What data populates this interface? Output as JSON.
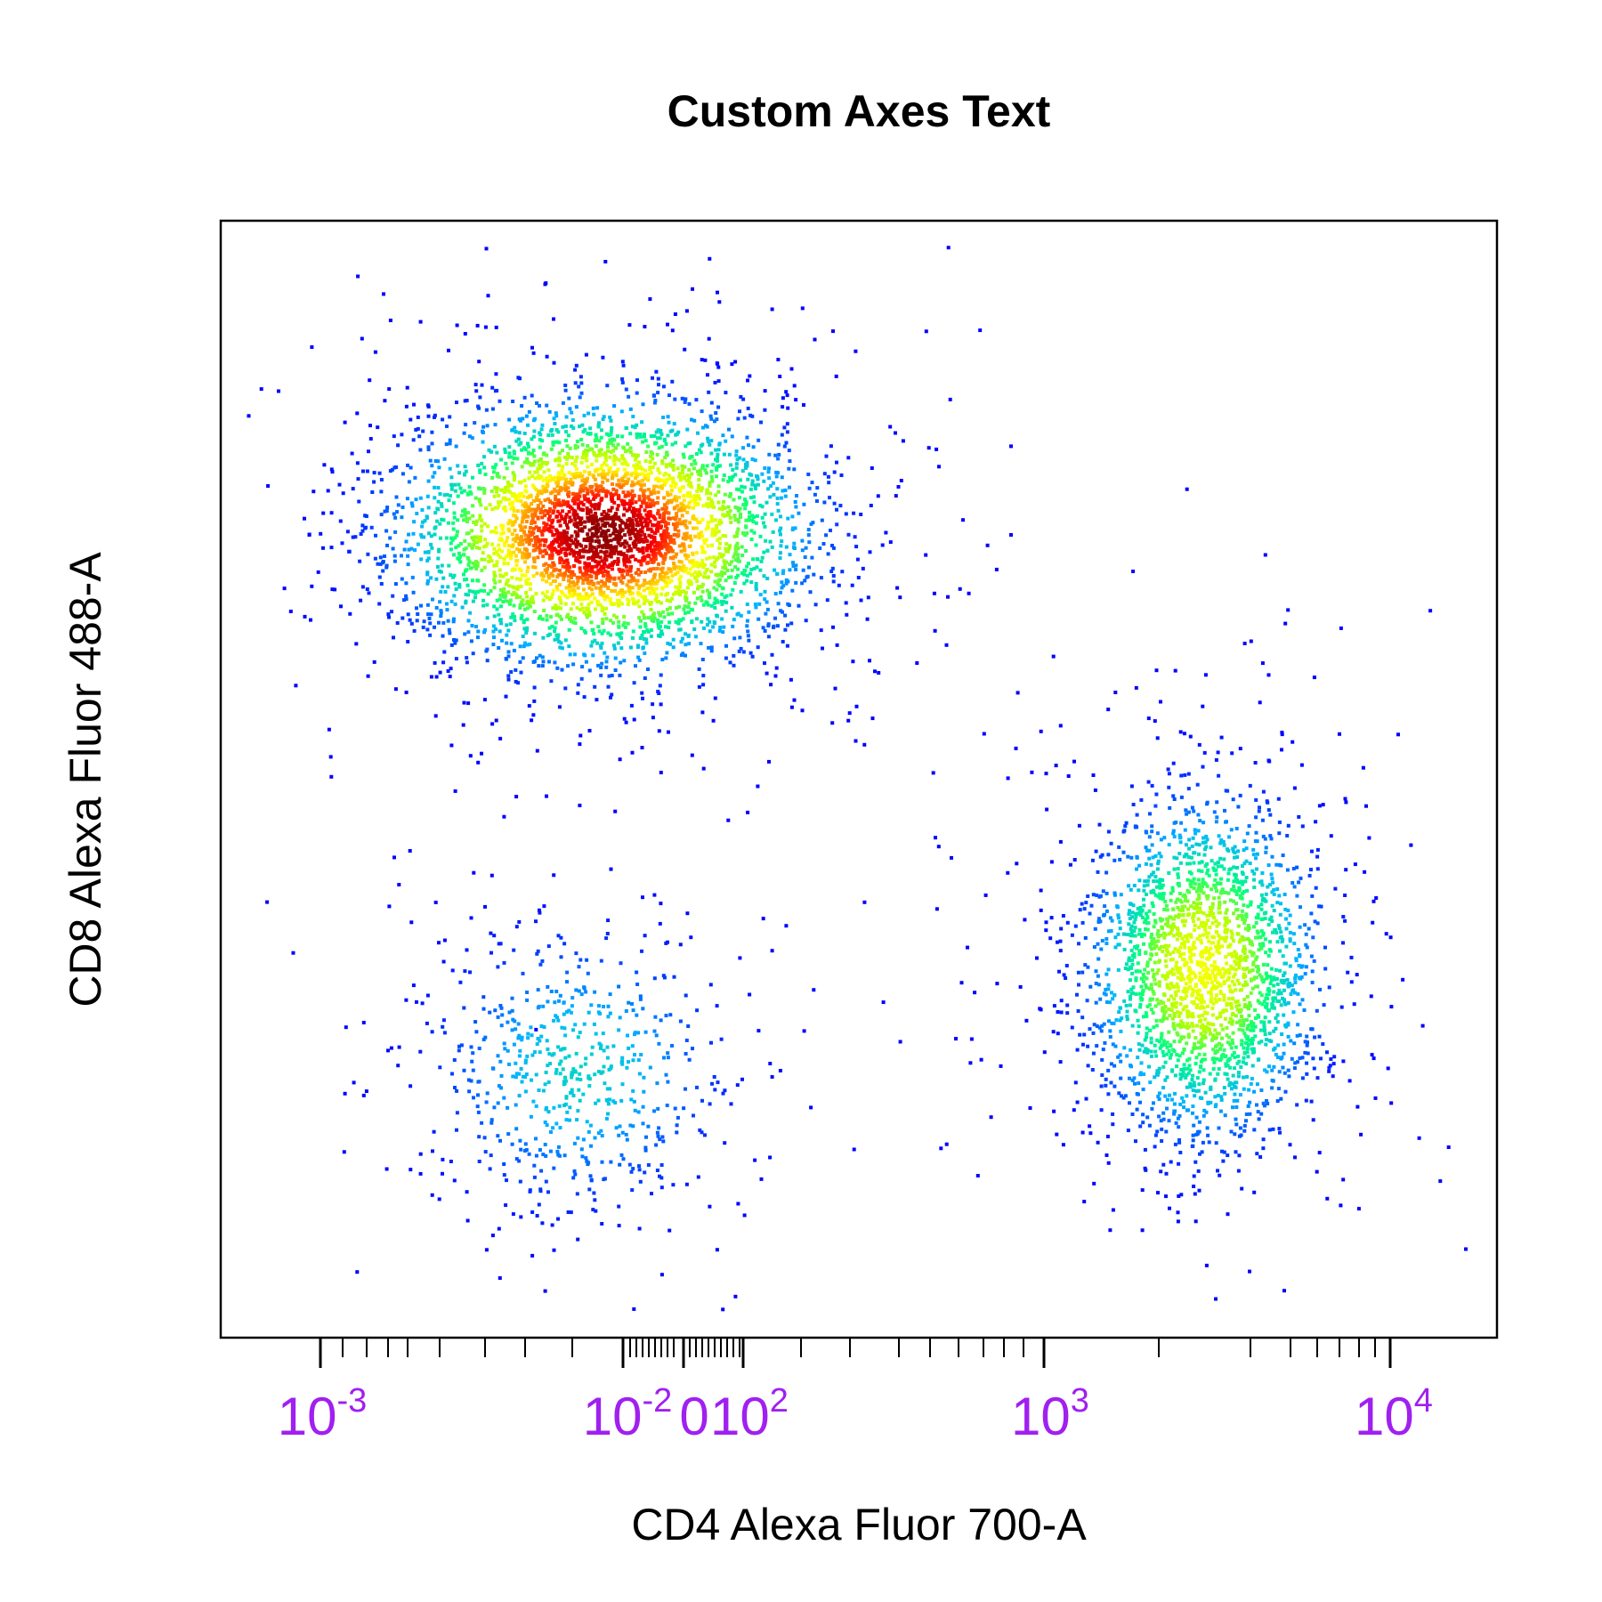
{
  "chart_data": {
    "type": "scatter",
    "subtype": "density-scatter",
    "title": "Custom Axes Text",
    "xlabel": "CD4 Alexa Fluor 700-A",
    "ylabel": "CD8 Alexa Fluor 488-A",
    "x_scale": "logicle",
    "y_scale": "logicle",
    "grid": false,
    "legend": "none",
    "tick_label_color": "#a020f0",
    "density_colors": [
      "#0000ff",
      "#00b4ff",
      "#00ff7f",
      "#b4ff00",
      "#ffff00",
      "#ff8c00",
      "#ff0000",
      "#8b0000"
    ],
    "x_tick_labels": [
      {
        "base": "10",
        "exp": "-3"
      },
      {
        "base": "10",
        "exp": "-2"
      },
      {
        "base": "0",
        "exp": ""
      },
      {
        "base": "10",
        "exp": "2"
      },
      {
        "base": "10",
        "exp": "3"
      },
      {
        "base": "10",
        "exp": "4"
      }
    ],
    "populations": [
      {
        "name": "",
        "cx": 0.3,
        "cy": 0.72,
        "sx": 0.075,
        "sy": 0.055,
        "n": 4200,
        "peak": 1.0
      },
      {
        "name": "",
        "cx": 0.28,
        "cy": 0.24,
        "sx": 0.06,
        "sy": 0.065,
        "n": 650,
        "peak": 0.2
      },
      {
        "name": "",
        "cx": 0.77,
        "cy": 0.33,
        "sx": 0.045,
        "sy": 0.075,
        "n": 2400,
        "peak": 0.55
      }
    ]
  }
}
